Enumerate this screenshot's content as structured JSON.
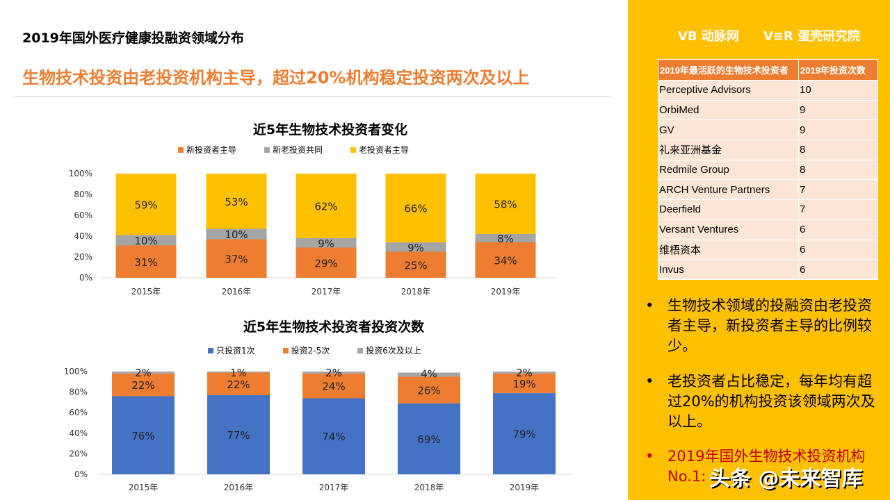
{
  "title": "2019年国外医疗健康投融资领域分布",
  "subtitle": "生物技术投资由老投资机构主导，超过20%机构稳定投资两次及以上",
  "chart_data": [
    {
      "type": "bar",
      "stacked": true,
      "title": "近5年生物技术投资者变化",
      "categories": [
        "2015年",
        "2016年",
        "2017年",
        "2018年",
        "2019年"
      ],
      "yticks": [
        "0%",
        "20%",
        "40%",
        "60%",
        "80%",
        "100%"
      ],
      "ylim": [
        0,
        100
      ],
      "legend": "top",
      "series": [
        {
          "name": "新投资者主导",
          "color": "#ed7d31",
          "values": [
            31,
            37,
            29,
            25,
            34
          ]
        },
        {
          "name": "新老投资共同",
          "color": "#a5a5a5",
          "values": [
            10,
            10,
            9,
            9,
            8
          ]
        },
        {
          "name": "老投资者主导",
          "color": "#ffc000",
          "values": [
            59,
            53,
            62,
            66,
            58
          ]
        }
      ]
    },
    {
      "type": "bar",
      "stacked": true,
      "title": "近5年生物技术投资者投资次数",
      "categories": [
        "2015年",
        "2016年",
        "2017年",
        "2018年",
        "2019年"
      ],
      "yticks": [
        "0%",
        "20%",
        "40%",
        "60%",
        "80%",
        "100%"
      ],
      "ylim": [
        0,
        100
      ],
      "legend": "top",
      "series": [
        {
          "name": "只投资1次",
          "color": "#4472c4",
          "values": [
            76,
            77,
            74,
            69,
            79
          ]
        },
        {
          "name": "投资2-5次",
          "color": "#ed7d31",
          "values": [
            22,
            22,
            24,
            26,
            19
          ]
        },
        {
          "name": "投资6次及以上",
          "color": "#a5a5a5",
          "values": [
            2,
            1,
            2,
            4,
            2
          ]
        }
      ]
    }
  ],
  "logos": {
    "left": "动脉网 vcbeat.top",
    "right": "蛋壳研究院 VCBeat Research"
  },
  "table": {
    "headers": [
      "2019年最活跃的生物技术投资者",
      "2019年投资次数"
    ],
    "rows": [
      [
        "Perceptive Advisors",
        "10"
      ],
      [
        "OrbiMed",
        "9"
      ],
      [
        "GV",
        "9"
      ],
      [
        "礼来亚洲基金",
        "8"
      ],
      [
        "Redmile Group",
        "8"
      ],
      [
        "ARCH Venture Partners",
        "7"
      ],
      [
        "Deerfield",
        "7"
      ],
      [
        "Versant Ventures",
        "6"
      ],
      [
        "维梧资本",
        "6"
      ],
      [
        "Invus",
        "6"
      ]
    ]
  },
  "bullets": [
    "生物技术领域的投融资由老投资者主导，新投资者主导的比例较少。",
    "老投资者占比稳定，每年均有超过20%的机构投资该领域两次及以上。",
    "2019年国外生物技术投资机构No.1:"
  ],
  "watermark": "头条 @未来智库"
}
